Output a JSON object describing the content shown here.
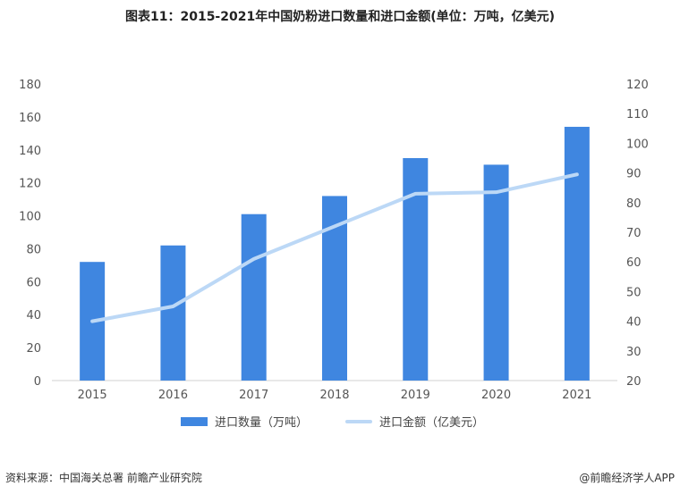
{
  "title": "图表11：2015-2021年中国奶粉进口数量和进口金额(单位：万吨，亿美元)",
  "footer": {
    "source": "资料来源：中国海关总署 前瞻产业研究院",
    "brand": "@前瞻经济学人APP"
  },
  "colors": {
    "bar": "#3f86e0",
    "line": "#bcd8f6",
    "axis": "#d0d0d0"
  },
  "chart_data": {
    "type": "bar",
    "title": "图表11：2015-2021年中国奶粉进口数量和进口金额(单位：万吨，亿美元)",
    "categories": [
      "2015",
      "2016",
      "2017",
      "2018",
      "2019",
      "2020",
      "2021"
    ],
    "series": [
      {
        "name": "进口数量（万吨）",
        "type": "bar",
        "axis": "left",
        "values": [
          72,
          82,
          101,
          112,
          135,
          131,
          154
        ]
      },
      {
        "name": "进口金额（亿美元）",
        "type": "line",
        "axis": "right",
        "values": [
          40,
          45,
          61,
          72,
          83,
          83.5,
          89.5
        ]
      }
    ],
    "y_left": {
      "min": 0,
      "max": 180,
      "ticks": [
        0,
        20,
        40,
        60,
        80,
        100,
        120,
        140,
        160,
        180
      ]
    },
    "y_right": {
      "min": 20,
      "max": 120,
      "ticks": [
        20,
        30,
        40,
        50,
        60,
        70,
        80,
        90,
        100,
        110,
        120
      ]
    },
    "grid": false,
    "legend": "bottom"
  }
}
